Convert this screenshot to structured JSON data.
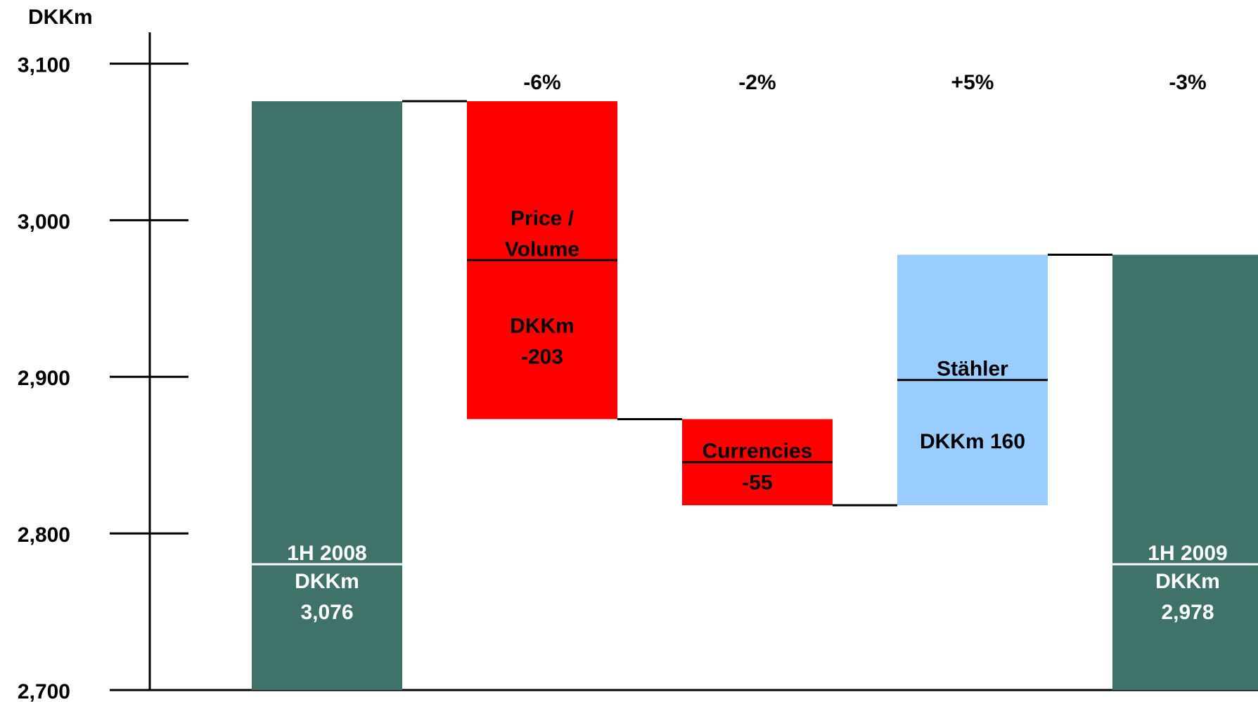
{
  "chart_data": {
    "type": "waterfall",
    "y_label": "DKKm",
    "categories": [
      "1H 2008",
      "Price /\nVolume",
      "Currencies",
      "Stähler",
      "1H 2009"
    ],
    "kinds": [
      "total",
      "delta",
      "delta",
      "delta",
      "total"
    ],
    "values": [
      3076,
      -203,
      -55,
      160,
      2978
    ],
    "value_labels": [
      "DKKm\n3,076",
      "DKKm\n-203",
      "-55",
      "DKKm 160",
      "DKKm\n2,978"
    ],
    "change_labels": [
      null,
      "-6%",
      "-2%",
      "+5%",
      "-3%"
    ],
    "colors": {
      "total": "#3f7369",
      "negative": "#ff0000",
      "positive": "#99ccff"
    },
    "ylim": [
      2700,
      3120
    ],
    "yticks": [
      {
        "value": 2700,
        "label": "2,700"
      },
      {
        "value": 2800,
        "label": "2,800"
      },
      {
        "value": 2900,
        "label": "2,900"
      },
      {
        "value": 3000,
        "label": "3,000"
      },
      {
        "value": 3100,
        "label": "3,100"
      }
    ]
  }
}
